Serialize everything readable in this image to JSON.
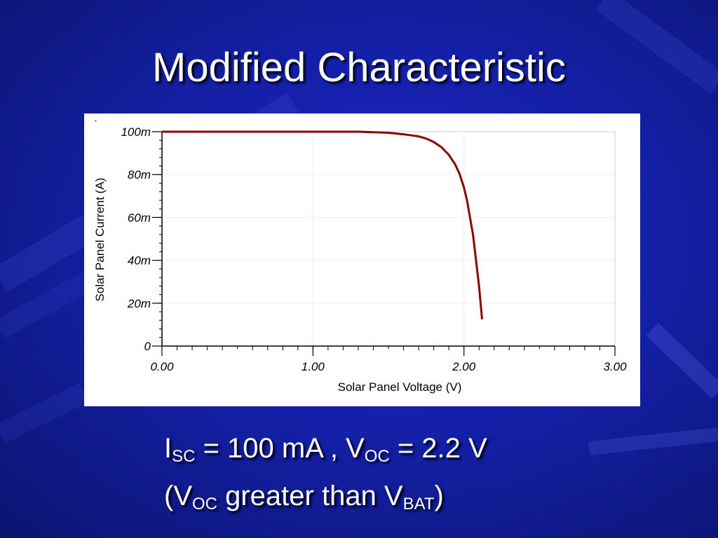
{
  "slide": {
    "title": "Modified Characteristic",
    "caption_line1": {
      "i": "I",
      "sc": "SC",
      "mid": " = 100 mA , V",
      "oc": "OC",
      "end": " = 2.2 V"
    },
    "caption_line2": {
      "open": "(V",
      "oc": "OC",
      "mid": " greater than V",
      "bat": "BAT",
      "close": ")"
    }
  },
  "colors": {
    "background": "#1420a8",
    "curve": "#8b0000",
    "text": "#ffffff"
  },
  "chart_data": {
    "type": "line",
    "title": "",
    "xlabel": "Solar Panel Voltage (V)",
    "ylabel": "Solar Panel Current (A)",
    "xlim": [
      0,
      3
    ],
    "ylim": [
      0,
      0.1
    ],
    "x_ticks": [
      0,
      1,
      2,
      3
    ],
    "x_tick_labels": [
      "0.00",
      "1.00",
      "2.00",
      "3.00"
    ],
    "y_ticks": [
      0,
      0.02,
      0.04,
      0.06,
      0.08,
      0.1
    ],
    "y_tick_labels": [
      "0",
      "20m",
      "40m",
      "60m",
      "80m",
      "100m"
    ],
    "grid": true,
    "series": [
      {
        "x": [
          0,
          0.5,
          1.0,
          1.3,
          1.5,
          1.6,
          1.7,
          1.75,
          1.8,
          1.85,
          1.9,
          1.94,
          1.97,
          2.0,
          2.02,
          2.04,
          2.06,
          2.08,
          2.1,
          2.12
        ],
        "y": [
          0.1,
          0.1,
          0.1,
          0.1,
          0.0995,
          0.0988,
          0.0978,
          0.0968,
          0.0952,
          0.0928,
          0.0892,
          0.085,
          0.0805,
          0.074,
          0.068,
          0.06,
          0.052,
          0.04,
          0.028,
          0.0125
        ]
      }
    ]
  }
}
